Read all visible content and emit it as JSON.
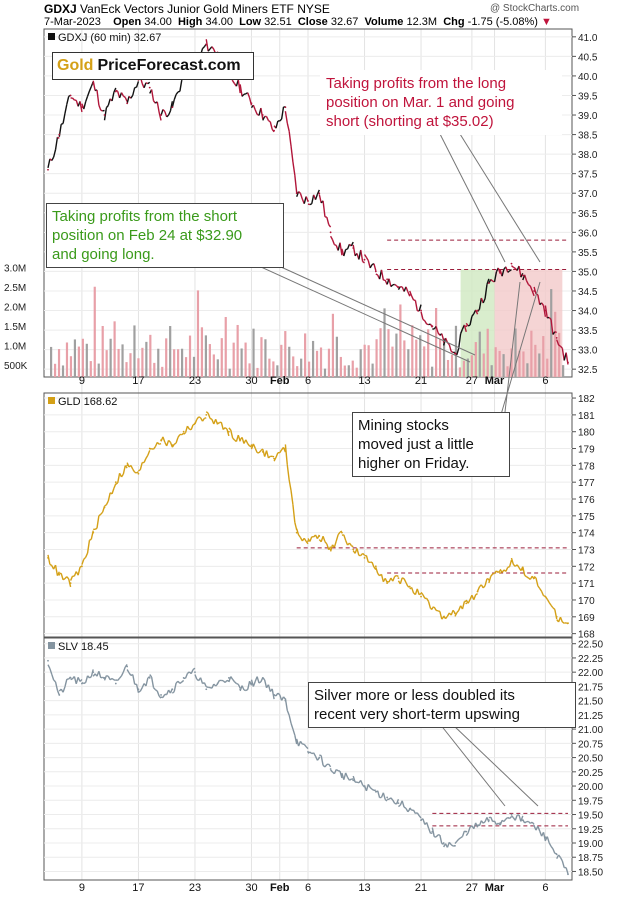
{
  "header": {
    "symbol": "GDXJ",
    "name": "VanEck Vectors Junior Gold Miners ETF",
    "exchange": "NYSE",
    "watermark": "@ StockCharts.com",
    "date": "7-Mar-2023",
    "open_label": "Open",
    "open": "34.00",
    "high_label": "High",
    "high": "34.00",
    "low_label": "Low",
    "low": "32.51",
    "close_label": "Close",
    "close": "32.67",
    "volume_label": "Volume",
    "volume": "12.3M",
    "chg_label": "Chg",
    "chg": "-1.75 (-5.08%)",
    "chg_arrow": "▼"
  },
  "logo": {
    "gold": "Gold",
    "rest": "PriceForecast.com"
  },
  "annotations": {
    "long_exit": [
      "Taking profits from the long",
      "position on Mar. 1 and going",
      "short (shorting at $35.02)"
    ],
    "short_exit": [
      "Taking profits from the short",
      "position on Feb 24 at $32.90",
      "and going long."
    ],
    "mining": [
      "Mining stocks",
      "moved just a little",
      "higher on Friday."
    ],
    "silver": [
      "Silver more or less doubled its",
      "recent very short-term upswing"
    ]
  },
  "colors": {
    "price_up": "#111111",
    "price_down": "#b1163a",
    "gld": "#d4a017",
    "slv": "#8494a0",
    "volume": "#e8a0a8",
    "volume_up": "#a0a0a0",
    "annotation_red": "#c0143c",
    "annotation_green": "#3a9a1a",
    "green_zone": "#cfe8c0",
    "red_zone": "#f3c9c9",
    "ref_line": "#9b1c3a"
  },
  "chart_data": [
    {
      "type": "line",
      "title": "GDXJ (60 min) 32.67",
      "series": [
        {
          "name": "GDXJ (60 min) 32.67",
          "x": [
            1,
            2,
            3,
            4,
            5,
            6,
            7,
            8,
            9,
            10,
            11,
            12,
            13,
            14,
            15,
            16,
            17,
            18,
            19,
            20,
            21,
            22,
            23,
            24,
            25,
            26,
            27,
            28,
            29,
            30,
            31,
            32,
            33,
            34,
            35,
            36,
            37,
            38,
            39,
            40,
            41,
            42,
            43,
            44,
            45,
            46,
            47
          ],
          "values": [
            37.6,
            38.5,
            39.5,
            39.2,
            39.8,
            39.0,
            39.6,
            39.3,
            39.9,
            39.7,
            39.0,
            39.2,
            40.0,
            40.3,
            40.8,
            40.6,
            40.0,
            39.7,
            39.3,
            39.0,
            38.6,
            39.2,
            37.0,
            36.8,
            37.0,
            36.0,
            35.5,
            35.6,
            35.3,
            35.0,
            34.8,
            34.6,
            34.4,
            34.0,
            33.6,
            33.2,
            32.9,
            33.6,
            34.0,
            34.7,
            35.0,
            35.2,
            34.9,
            34.5,
            34.0,
            33.3,
            32.67
          ]
        }
      ],
      "ylim": [
        32.3,
        41.2
      ],
      "yticks": [
        "32.5",
        "33.0",
        "33.5",
        "34.0",
        "34.5",
        "35.0",
        "35.5",
        "36.0",
        "36.5",
        "37.0",
        "37.5",
        "38.0",
        "38.5",
        "39.0",
        "39.5",
        "40.0",
        "40.5",
        "41.0"
      ],
      "volume_ticks": [
        "500K",
        "1.0M",
        "1.5M",
        "2.0M",
        "2.5M",
        "3.0M"
      ],
      "reference_lines": [
        35.8,
        35.05
      ]
    },
    {
      "type": "line",
      "title": "GLD 168.62",
      "series": [
        {
          "name": "GLD 168.62",
          "x": [
            1,
            2,
            3,
            4,
            5,
            6,
            7,
            8,
            9,
            10,
            11,
            12,
            13,
            14,
            15,
            16,
            17,
            18,
            19,
            20,
            21,
            22,
            23,
            24,
            25,
            26,
            27,
            28,
            29,
            30,
            31,
            32,
            33,
            34,
            35,
            36,
            37,
            38,
            39,
            40,
            41,
            42,
            43,
            44,
            45,
            46,
            47
          ],
          "values": [
            172.5,
            171.5,
            171.0,
            172.0,
            174.0,
            175.5,
            177.0,
            178.0,
            177.5,
            179.0,
            179.5,
            179.2,
            180.0,
            180.5,
            181.0,
            180.5,
            180.0,
            179.5,
            179.2,
            178.8,
            178.4,
            179.0,
            174.0,
            173.5,
            173.8,
            173.0,
            174.0,
            173.0,
            172.5,
            172.0,
            171.0,
            171.3,
            170.8,
            170.2,
            169.5,
            169.0,
            169.2,
            169.8,
            170.5,
            171.2,
            171.6,
            172.3,
            171.8,
            171.3,
            170.2,
            169.0,
            168.62
          ]
        }
      ],
      "ylim": [
        167.8,
        182.3
      ],
      "yticks": [
        "168",
        "169",
        "170",
        "171",
        "172",
        "173",
        "174",
        "175",
        "176",
        "177",
        "178",
        "179",
        "180",
        "181",
        "182"
      ],
      "reference_lines": [
        173.1,
        171.6
      ]
    },
    {
      "type": "line",
      "title": "SLV 18.45",
      "series": [
        {
          "name": "SLV 18.45",
          "x": [
            1,
            2,
            3,
            4,
            5,
            6,
            7,
            8,
            9,
            10,
            11,
            12,
            13,
            14,
            15,
            16,
            17,
            18,
            19,
            20,
            21,
            22,
            23,
            24,
            25,
            26,
            27,
            28,
            29,
            30,
            31,
            32,
            33,
            34,
            35,
            36,
            37,
            38,
            39,
            40,
            41,
            42,
            43,
            44,
            45,
            46,
            47
          ],
          "values": [
            22.2,
            21.6,
            21.9,
            21.8,
            22.0,
            21.9,
            21.8,
            22.1,
            21.7,
            21.9,
            21.6,
            21.7,
            21.9,
            22.0,
            21.7,
            21.8,
            21.9,
            21.7,
            21.8,
            21.9,
            21.6,
            21.5,
            20.8,
            20.6,
            20.5,
            20.3,
            20.2,
            20.1,
            20.0,
            19.9,
            19.8,
            19.7,
            19.6,
            19.4,
            19.2,
            19.0,
            18.95,
            19.2,
            19.3,
            19.4,
            19.35,
            19.5,
            19.4,
            19.3,
            19.1,
            18.8,
            18.45
          ]
        }
      ],
      "ylim": [
        18.35,
        22.6
      ],
      "yticks": [
        "18.50",
        "18.75",
        "19.00",
        "19.25",
        "19.50",
        "19.75",
        "20.00",
        "20.25",
        "20.50",
        "20.75",
        "21.00",
        "21.25",
        "21.50",
        "21.75",
        "22.00",
        "22.25",
        "22.50"
      ],
      "reference_lines": [
        19.52,
        19.3
      ]
    }
  ],
  "x_axis": {
    "labels": [
      "9",
      "17",
      "23",
      "30",
      "Feb",
      "6",
      "13",
      "21",
      "27",
      "Mar",
      "6"
    ],
    "positions": [
      4,
      9,
      14,
      19,
      21.5,
      24,
      29,
      34,
      38.5,
      40.5,
      45
    ]
  }
}
